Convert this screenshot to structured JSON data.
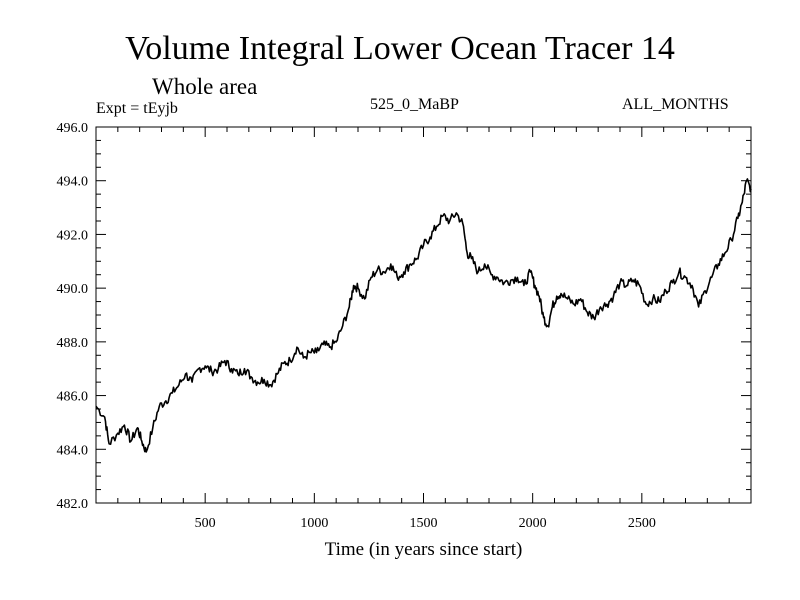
{
  "chart_data": {
    "type": "line",
    "title": "Volume Integral Lower Ocean Tracer 14",
    "subtitle": "Whole area",
    "expt_label": "Expt = tEyjb",
    "period_label": "525_0_MaBP",
    "months_label": "ALL_MONTHS",
    "xlabel": "Time (in years since start)",
    "ylabel": "",
    "xlim": [
      0,
      3000
    ],
    "ylim": [
      482.0,
      496.0
    ],
    "x_ticks": [
      500,
      1000,
      1500,
      2000,
      2500
    ],
    "x_tick_labels": [
      "500",
      "1000",
      "1500",
      "2000",
      "2500"
    ],
    "y_ticks": [
      482.0,
      484.0,
      486.0,
      488.0,
      490.0,
      492.0,
      494.0,
      496.0
    ],
    "y_tick_labels": [
      "482.0",
      "484.0",
      "486.0",
      "488.0",
      "490.0",
      "492.0",
      "494.0",
      "496.0"
    ],
    "grid": false,
    "series": [
      {
        "name": "tEyjb",
        "x": [
          0,
          40,
          60,
          100,
          130,
          160,
          190,
          210,
          230,
          260,
          290,
          320,
          350,
          380,
          410,
          440,
          470,
          500,
          530,
          560,
          590,
          620,
          650,
          680,
          710,
          740,
          770,
          800,
          830,
          860,
          890,
          920,
          950,
          980,
          1010,
          1040,
          1070,
          1100,
          1130,
          1160,
          1180,
          1200,
          1230,
          1260,
          1290,
          1320,
          1350,
          1380,
          1410,
          1440,
          1470,
          1500,
          1530,
          1560,
          1590,
          1620,
          1650,
          1680,
          1700,
          1720,
          1750,
          1780,
          1810,
          1840,
          1870,
          1900,
          1930,
          1960,
          1990,
          2010,
          2030,
          2050,
          2070,
          2090,
          2110,
          2130,
          2160,
          2190,
          2220,
          2250,
          2280,
          2310,
          2340,
          2370,
          2400,
          2430,
          2460,
          2490,
          2520,
          2550,
          2580,
          2610,
          2640,
          2670,
          2700,
          2730,
          2760,
          2790,
          2820,
          2850,
          2880,
          2910,
          2940,
          2960,
          2980,
          3000
        ],
        "values": [
          485.6,
          485.2,
          484.2,
          484.6,
          484.9,
          484.3,
          484.8,
          484.3,
          483.9,
          484.8,
          485.6,
          485.8,
          486.1,
          486.4,
          486.8,
          486.5,
          487.0,
          487.1,
          486.9,
          487.0,
          487.3,
          487.0,
          486.8,
          487.0,
          486.7,
          486.5,
          486.6,
          486.4,
          486.8,
          487.2,
          487.3,
          487.8,
          487.4,
          487.6,
          487.6,
          487.9,
          487.8,
          488.0,
          488.6,
          489.3,
          490.1,
          490.0,
          489.6,
          490.4,
          490.7,
          490.6,
          490.9,
          490.4,
          490.6,
          490.9,
          491.1,
          491.6,
          491.9,
          492.3,
          492.7,
          492.5,
          492.8,
          492.4,
          491.3,
          491.1,
          490.6,
          490.9,
          490.5,
          490.4,
          490.2,
          490.3,
          490.4,
          490.1,
          490.6,
          490.1,
          489.7,
          488.9,
          488.6,
          489.3,
          489.7,
          489.8,
          489.6,
          489.4,
          489.6,
          489.1,
          488.9,
          489.3,
          489.4,
          489.7,
          490.2,
          490.1,
          490.3,
          490.1,
          489.4,
          489.6,
          489.5,
          489.9,
          490.2,
          490.6,
          490.4,
          490.1,
          489.3,
          489.9,
          490.4,
          490.9,
          491.3,
          491.8,
          492.6,
          493.2,
          494.0,
          493.7
        ]
      }
    ]
  }
}
